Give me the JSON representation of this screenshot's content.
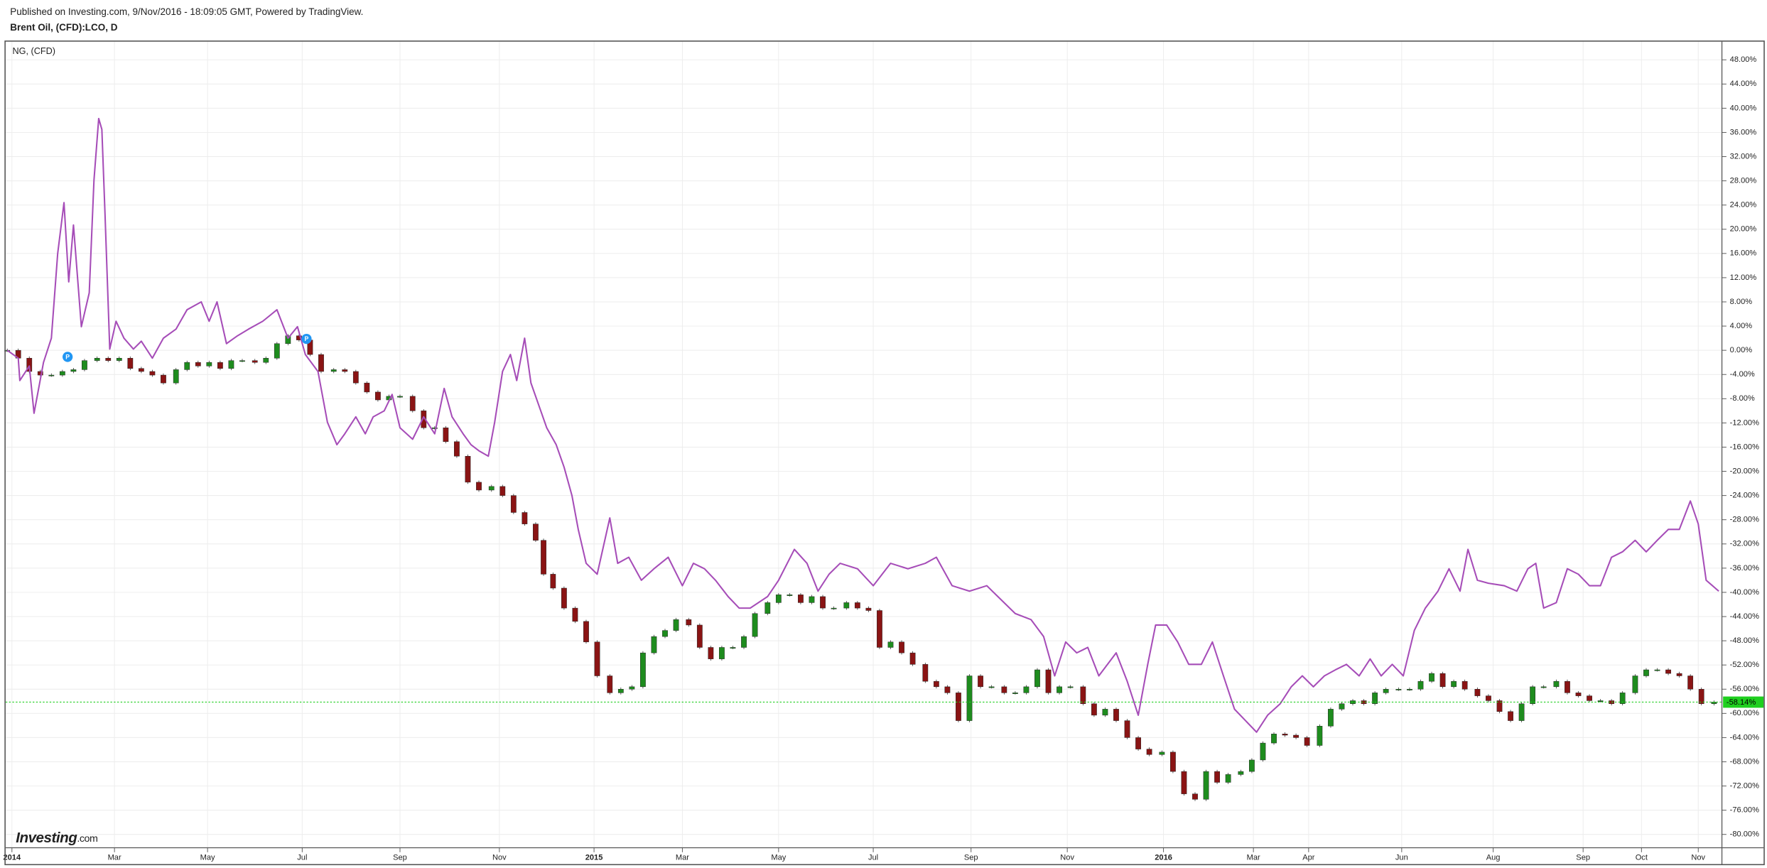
{
  "header": {
    "published": "Published on Investing.com, 9/Nov/2016 - 18:09:05 GMT, Powered by TradingView.",
    "symbol": "Brent Oil, (CFD):LCO, D"
  },
  "logo": {
    "name": "Investing",
    "suffix": ".com"
  },
  "event_labels": [
    "P",
    "P"
  ],
  "chart_data": {
    "type": "comparison",
    "legend": "NG,  (CFD)",
    "xlim": [
      -4,
      1084
    ],
    "ylim": [
      -82.2,
      51
    ],
    "grid": true,
    "xticks": [
      {
        "value": 0,
        "label": "2014"
      },
      {
        "value": 65,
        "label": "Mar"
      },
      {
        "value": 124,
        "label": "May"
      },
      {
        "value": 184,
        "label": "Jul"
      },
      {
        "value": 246,
        "label": "Sep"
      },
      {
        "value": 309,
        "label": "Nov"
      },
      {
        "value": 369,
        "label": "2015"
      },
      {
        "value": 425,
        "label": "Mar"
      },
      {
        "value": 486,
        "label": "May"
      },
      {
        "value": 546,
        "label": "Jul"
      },
      {
        "value": 608,
        "label": "Sep"
      },
      {
        "value": 669,
        "label": "Nov"
      },
      {
        "value": 730,
        "label": "2016"
      },
      {
        "value": 787,
        "label": "Mar"
      },
      {
        "value": 822,
        "label": "Apr"
      },
      {
        "value": 881,
        "label": "Jun"
      },
      {
        "value": 939,
        "label": "Aug"
      },
      {
        "value": 996,
        "label": "Sep"
      },
      {
        "value": 1033,
        "label": "Oct"
      },
      {
        "value": 1069,
        "label": "Nov"
      }
    ],
    "yticks": [
      {
        "value": 48,
        "label": "48.00%"
      },
      {
        "value": 44,
        "label": "44.00%"
      },
      {
        "value": 40,
        "label": "40.00%"
      },
      {
        "value": 36,
        "label": "36.00%"
      },
      {
        "value": 32,
        "label": "32.00%"
      },
      {
        "value": 28,
        "label": "28.00%"
      },
      {
        "value": 24,
        "label": "24.00%"
      },
      {
        "value": 20,
        "label": "20.00%"
      },
      {
        "value": 16,
        "label": "16.00%"
      },
      {
        "value": 12,
        "label": "12.00%"
      },
      {
        "value": 8,
        "label": "8.00%"
      },
      {
        "value": 4,
        "label": "4.00%"
      },
      {
        "value": 0,
        "label": "0.00%"
      },
      {
        "value": -4,
        "label": "-4.00%"
      },
      {
        "value": -8,
        "label": "-8.00%"
      },
      {
        "value": -12,
        "label": "-12.00%"
      },
      {
        "value": -16,
        "label": "-16.00%"
      },
      {
        "value": -20,
        "label": "-20.00%"
      },
      {
        "value": -24,
        "label": "-24.00%"
      },
      {
        "value": -28,
        "label": "-28.00%"
      },
      {
        "value": -32,
        "label": "-32.00%"
      },
      {
        "value": -36,
        "label": "-36.00%"
      },
      {
        "value": -40,
        "label": "-40.00%"
      },
      {
        "value": -44,
        "label": "-44.00%"
      },
      {
        "value": -48,
        "label": "-48.00%"
      },
      {
        "value": -52,
        "label": "-52.00%"
      },
      {
        "value": -56,
        "label": "-56.00%"
      },
      {
        "value": -60,
        "label": "-60.00%"
      },
      {
        "value": -64,
        "label": "-64.00%"
      },
      {
        "value": -68,
        "label": "-68.00%"
      },
      {
        "value": -72,
        "label": "-72.00%"
      },
      {
        "value": -76,
        "label": "-76.00%"
      },
      {
        "value": -80,
        "label": "-80.00%"
      }
    ],
    "price_line": {
      "value": -58.14,
      "label": "-58.14%",
      "color": "#1fcf1f"
    },
    "series": [
      {
        "style": "candle",
        "up_color": "#1e8c1e",
        "down_color": "#8a1414",
        "x": [
          -3,
          4,
          11,
          18,
          25,
          32,
          39,
          46,
          54,
          61,
          68,
          75,
          82,
          89,
          96,
          104,
          111,
          118,
          125,
          132,
          139,
          146,
          154,
          161,
          168,
          175,
          182,
          189,
          196,
          204,
          211,
          218,
          225,
          232,
          239,
          246,
          254,
          261,
          268,
          275,
          282,
          289,
          296,
          304,
          311,
          318,
          325,
          332,
          337,
          343,
          350,
          357,
          364,
          371,
          379,
          386,
          393,
          400,
          407,
          414,
          421,
          429,
          436,
          443,
          450,
          457,
          464,
          471,
          479,
          486,
          493,
          500,
          507,
          514,
          521,
          529,
          536,
          543,
          550,
          557,
          564,
          571,
          579,
          586,
          593,
          600,
          607,
          614,
          621,
          629,
          636,
          643,
          650,
          657,
          664,
          671,
          679,
          686,
          693,
          700,
          707,
          714,
          721,
          729,
          736,
          743,
          750,
          757,
          764,
          771,
          779,
          786,
          793,
          800,
          807,
          814,
          821,
          829,
          836,
          843,
          850,
          857,
          864,
          871,
          879,
          886,
          893,
          900,
          907,
          914,
          921,
          929,
          936,
          943,
          950,
          957,
          964,
          971,
          979,
          986,
          993,
          1000,
          1007,
          1014,
          1021,
          1029,
          1036,
          1043,
          1050,
          1057,
          1064,
          1071,
          1079
        ],
        "values": [
          0,
          -1.3,
          -3.5,
          -4.1,
          -4.1,
          -3.5,
          -3.2,
          -1.7,
          -1.3,
          -1.7,
          -1.3,
          -3.0,
          -3.5,
          -4.1,
          -5.4,
          -3.2,
          -2.0,
          -2.6,
          -2.0,
          -3.0,
          -1.7,
          -1.7,
          -2.0,
          -1.3,
          1.1,
          2.4,
          1.7,
          -0.7,
          -3.5,
          -3.2,
          -3.5,
          -5.4,
          -6.9,
          -8.2,
          -7.6,
          -7.6,
          -10.0,
          -12.8,
          -12.8,
          -15.1,
          -17.5,
          -21.8,
          -23.1,
          -22.5,
          -24.0,
          -26.8,
          -28.7,
          -31.4,
          -37.0,
          -39.3,
          -42.6,
          -44.8,
          -48.2,
          -53.8,
          -56.6,
          -56.0,
          -55.6,
          -50.0,
          -47.3,
          -46.3,
          -44.5,
          -45.4,
          -49.1,
          -51.0,
          -49.1,
          -49.1,
          -47.3,
          -43.5,
          -41.7,
          -40.4,
          -40.4,
          -41.7,
          -40.7,
          -42.6,
          -42.6,
          -41.7,
          -42.6,
          -43.0,
          -49.1,
          -48.2,
          -50.0,
          -51.9,
          -54.7,
          -55.6,
          -56.6,
          -61.2,
          -53.8,
          -55.6,
          -55.6,
          -56.6,
          -56.6,
          -55.6,
          -52.8,
          -56.6,
          -55.6,
          -55.6,
          -58.4,
          -60.3,
          -59.3,
          -61.2,
          -64.0,
          -65.9,
          -66.8,
          -66.4,
          -69.6,
          -73.3,
          -74.2,
          -69.6,
          -71.4,
          -70.1,
          -69.6,
          -67.7,
          -64.9,
          -63.4,
          -63.6,
          -64.0,
          -65.3,
          -62.1,
          -59.3,
          -58.4,
          -57.9,
          -58.4,
          -56.6,
          -56.0,
          -56.0,
          -56.0,
          -54.7,
          -53.4,
          -55.6,
          -54.7,
          -56.0,
          -57.1,
          -57.9,
          -59.7,
          -61.2,
          -58.4,
          -55.6,
          -55.6,
          -54.7,
          -56.6,
          -57.1,
          -57.9,
          -57.9,
          -58.4,
          -56.6,
          -53.8,
          -52.8,
          -52.8,
          -53.4,
          -53.8,
          -56.0,
          -58.4,
          -58.14
        ]
      },
      {
        "name": "NG,  (CFD)",
        "style": "line",
        "color": "#a64db8",
        "x": [
          -3,
          4,
          5,
          11,
          14,
          20,
          25,
          29,
          33,
          36,
          39,
          44,
          49,
          52,
          55,
          57,
          59,
          62,
          66,
          71,
          77,
          82,
          89,
          96,
          104,
          111,
          120,
          125,
          130,
          136,
          143,
          150,
          159,
          168,
          175,
          181,
          186,
          194,
          200,
          206,
          211,
          218,
          224,
          229,
          236,
          241,
          246,
          254,
          261,
          268,
          274,
          279,
          286,
          291,
          296,
          302,
          306,
          311,
          316,
          320,
          325,
          329,
          334,
          339,
          345,
          350,
          355,
          359,
          364,
          371,
          379,
          384,
          391,
          399,
          407,
          416,
          425,
          432,
          439,
          446,
          454,
          461,
          468,
          479,
          486,
          496,
          504,
          511,
          518,
          525,
          536,
          546,
          557,
          568,
          579,
          586,
          596,
          607,
          618,
          625,
          636,
          646,
          654,
          661,
          668,
          675,
          682,
          689,
          700,
          707,
          714,
          720,
          725,
          732,
          739,
          746,
          754,
          761,
          768,
          775,
          782,
          789,
          796,
          804,
          811,
          818,
          825,
          832,
          839,
          846,
          854,
          861,
          868,
          875,
          882,
          889,
          896,
          904,
          911,
          918,
          923,
          929,
          936,
          946,
          954,
          961,
          966,
          971,
          979,
          986,
          993,
          1000,
          1007,
          1014,
          1021,
          1029,
          1036,
          1043,
          1050,
          1057,
          1064,
          1069,
          1074,
          1078,
          1082
        ],
        "values": [
          0,
          -1.3,
          -5.0,
          -2.6,
          -10.4,
          -2.0,
          2.0,
          16.0,
          24.4,
          11.3,
          20.7,
          3.9,
          9.5,
          28.1,
          38.3,
          36.5,
          22.5,
          0.2,
          4.8,
          2.0,
          0.2,
          1.5,
          -1.3,
          2.0,
          3.5,
          6.7,
          8.0,
          4.8,
          8.0,
          1.1,
          2.4,
          3.5,
          4.8,
          6.7,
          2.0,
          3.9,
          -0.7,
          -3.5,
          -11.9,
          -15.6,
          -13.8,
          -11.0,
          -13.8,
          -11.0,
          -10.0,
          -7.3,
          -12.8,
          -14.7,
          -11.0,
          -13.8,
          -6.3,
          -11.0,
          -13.8,
          -15.6,
          -16.6,
          -17.5,
          -11.9,
          -3.5,
          -0.7,
          -5.0,
          2.0,
          -5.4,
          -9.1,
          -12.8,
          -15.6,
          -19.3,
          -24.0,
          -29.6,
          -35.2,
          -37.0,
          -27.7,
          -35.2,
          -34.2,
          -38.0,
          -36.1,
          -34.2,
          -38.9,
          -35.2,
          -36.1,
          -38.0,
          -40.7,
          -42.6,
          -42.6,
          -40.7,
          -38.0,
          -32.9,
          -35.2,
          -39.8,
          -37.0,
          -35.2,
          -36.1,
          -38.9,
          -35.2,
          -36.1,
          -35.2,
          -34.2,
          -38.9,
          -39.8,
          -38.9,
          -40.7,
          -43.5,
          -44.5,
          -47.3,
          -53.8,
          -48.2,
          -50.0,
          -49.1,
          -53.8,
          -50.0,
          -54.7,
          -60.3,
          -51.9,
          -45.4,
          -45.4,
          -48.2,
          -51.9,
          -51.9,
          -48.2,
          -53.8,
          -59.3,
          -61.2,
          -63.1,
          -60.3,
          -58.4,
          -55.6,
          -53.8,
          -55.6,
          -53.8,
          -52.8,
          -51.9,
          -53.8,
          -51.0,
          -53.8,
          -51.9,
          -53.8,
          -46.3,
          -42.6,
          -39.8,
          -36.1,
          -39.8,
          -32.9,
          -38.0,
          -38.5,
          -38.9,
          -39.8,
          -36.1,
          -35.2,
          -42.6,
          -41.7,
          -36.1,
          -37.0,
          -38.9,
          -38.9,
          -34.2,
          -33.3,
          -31.4,
          -33.3,
          -31.4,
          -29.6,
          -29.6,
          -24.9,
          -28.7,
          -38.0,
          -38.9,
          -39.8
        ]
      }
    ]
  }
}
